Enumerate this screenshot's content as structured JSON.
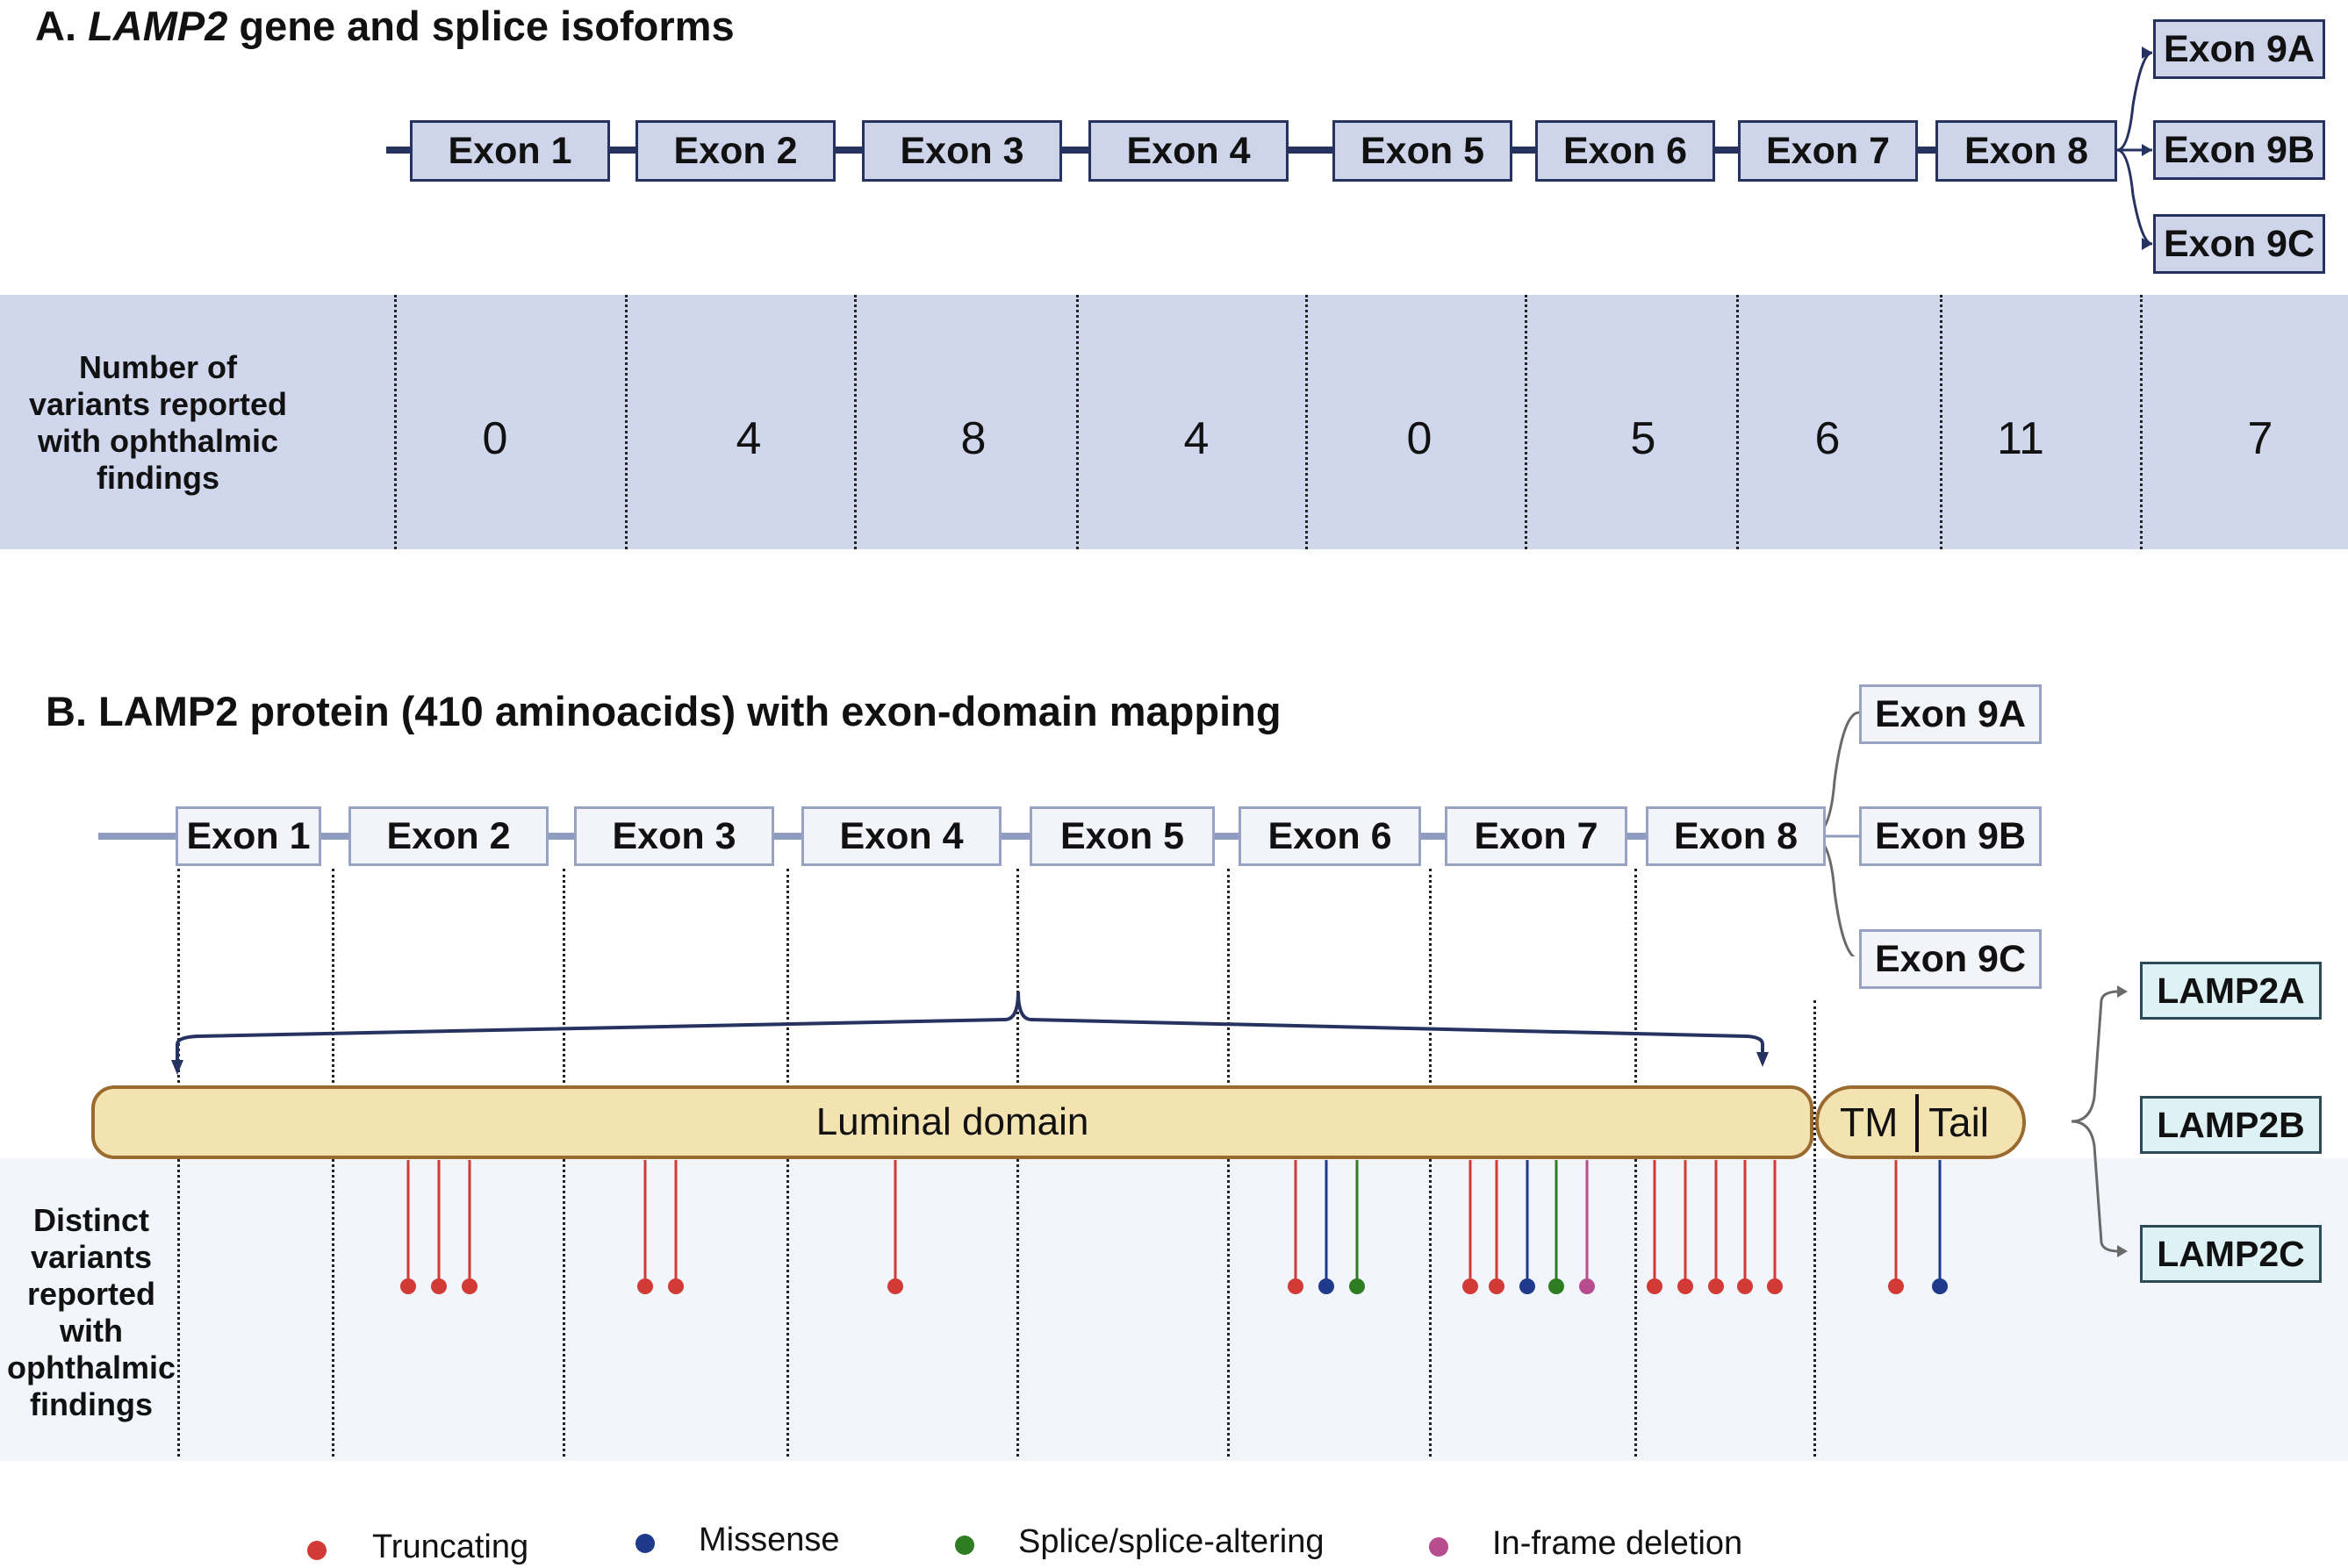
{
  "panel_a": {
    "title_prefix": "A. ",
    "title_gene": "LAMP2",
    "title_suffix": " gene and splice isoforms",
    "exons": [
      "Exon 1",
      "Exon 2",
      "Exon 3",
      "Exon 4",
      "Exon 5",
      "Exon 6",
      "Exon 7",
      "Exon 8"
    ],
    "isoform_exons": [
      "Exon 9A",
      "Exon 9B",
      "Exon 9C"
    ],
    "row_label": "Number of variants reported with ophthalmic findings",
    "counts": [
      "0",
      "4",
      "8",
      "4",
      "0",
      "5",
      "6",
      "11",
      "7"
    ]
  },
  "panel_b": {
    "title": "B. LAMP2 protein (410 aminoacids) with exon-domain mapping",
    "exons": [
      "Exon 1",
      "Exon 2",
      "Exon 3",
      "Exon 4",
      "Exon 5",
      "Exon 6",
      "Exon 7",
      "Exon 8"
    ],
    "isoform_exons": [
      "Exon 9A",
      "Exon 9B",
      "Exon 9C"
    ],
    "luminal_label": "Luminal domain",
    "tm_label": "TM",
    "tail_label": "Tail",
    "isoforms": [
      "LAMP2A",
      "LAMP2B",
      "LAMP2C"
    ],
    "row_label": "Distinct variants reported with ophthalmic findings",
    "variant_types": [
      "truncating",
      "truncating",
      "truncating",
      "truncating",
      "truncating",
      "truncating",
      "truncating",
      "missense",
      "splice",
      "truncating",
      "truncating",
      "missense",
      "splice",
      "inframe",
      "truncating",
      "truncating",
      "truncating",
      "truncating",
      "truncating",
      "truncating",
      "missense"
    ]
  },
  "legend": [
    {
      "key": "truncating",
      "label": "Truncating",
      "color": "#d23a35"
    },
    {
      "key": "missense",
      "label": "Missense",
      "color": "#1f3a8a"
    },
    {
      "key": "splice",
      "label": "Splice/splice-altering",
      "color": "#2e7d23"
    },
    {
      "key": "inframe",
      "label": "In-frame deletion",
      "color": "#b84d8e"
    }
  ],
  "colors": {
    "backbone_a": "#26325f",
    "backbone_b": "#8e9cc0",
    "arrow": "#26325f",
    "band_a": "#d0d6eb",
    "band_b": "#f2f5fb",
    "domain_fill": "#f3e3b1",
    "domain_border": "#9a6a2e"
  }
}
